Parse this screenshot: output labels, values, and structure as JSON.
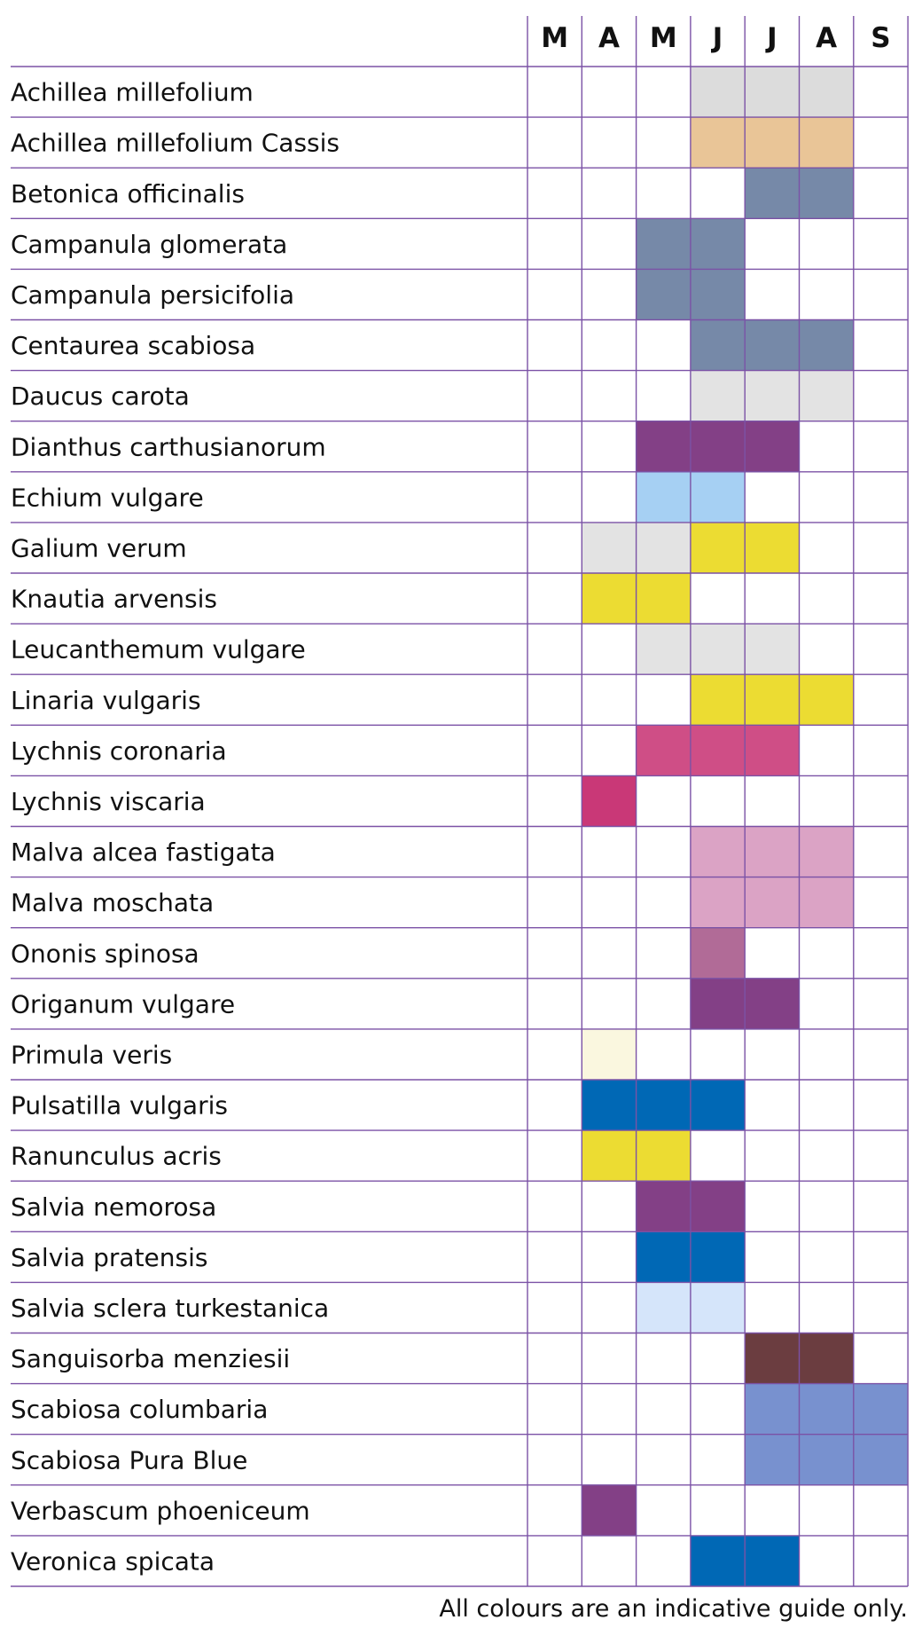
{
  "chart_data": {
    "type": "table",
    "months": [
      "M",
      "A",
      "M",
      "J",
      "J",
      "A",
      "S"
    ],
    "rows": [
      {
        "name": "Achillea millefolium",
        "cells": [
          null,
          null,
          null,
          "#dcdcdc",
          "#dcdcdc",
          "#dcdcdc",
          null
        ]
      },
      {
        "name": "Achillea millefolium Cassis",
        "cells": [
          null,
          null,
          null,
          "#e9c597",
          "#e9c597",
          "#e9c597",
          null
        ]
      },
      {
        "name": "Betonica officinalis",
        "cells": [
          null,
          null,
          null,
          null,
          "#7689a8",
          "#7689a8",
          null
        ]
      },
      {
        "name": "Campanula glomerata",
        "cells": [
          null,
          null,
          "#7689a8",
          "#7689a8",
          null,
          null,
          null
        ]
      },
      {
        "name": "Campanula persicifolia",
        "cells": [
          null,
          null,
          "#7689a8",
          "#7689a8",
          null,
          null,
          null
        ]
      },
      {
        "name": "Centaurea scabiosa",
        "cells": [
          null,
          null,
          null,
          "#7689a8",
          "#7689a8",
          "#7689a8",
          null
        ]
      },
      {
        "name": "Daucus carota",
        "cells": [
          null,
          null,
          null,
          "#e3e3e3",
          "#e3e3e3",
          "#e3e3e3",
          null
        ]
      },
      {
        "name": "Dianthus carthusianorum",
        "cells": [
          null,
          null,
          "#834086",
          "#834086",
          "#834086",
          null,
          null
        ]
      },
      {
        "name": "Echium vulgare",
        "cells": [
          null,
          null,
          "#a6d0f3",
          "#a6d0f3",
          null,
          null,
          null
        ]
      },
      {
        "name": "Galium verum",
        "cells": [
          null,
          "#e3e3e3",
          "#e3e3e3",
          "#ecdc32",
          "#ecdc32",
          null,
          null
        ]
      },
      {
        "name": "Knautia arvensis",
        "cells": [
          null,
          "#ecdc32",
          "#ecdc32",
          null,
          null,
          null,
          null
        ]
      },
      {
        "name": "Leucanthemum vulgare",
        "cells": [
          null,
          null,
          "#e3e3e3",
          "#e3e3e3",
          "#e3e3e3",
          null,
          null
        ]
      },
      {
        "name": "Linaria vulgaris",
        "cells": [
          null,
          null,
          null,
          "#ecdc32",
          "#ecdc32",
          "#ecdc32",
          null
        ]
      },
      {
        "name": "Lychnis coronaria",
        "cells": [
          null,
          null,
          "#cf4e86",
          "#cf4e86",
          "#cf4e86",
          null,
          null
        ]
      },
      {
        "name": "Lychnis viscaria",
        "cells": [
          null,
          "#c93877",
          null,
          null,
          null,
          null,
          null
        ]
      },
      {
        "name": "Malva alcea fastigata",
        "cells": [
          null,
          null,
          null,
          "#dba3c5",
          "#dba3c5",
          "#dba3c5",
          null
        ]
      },
      {
        "name": "Malva moschata",
        "cells": [
          null,
          null,
          null,
          "#dba3c5",
          "#dba3c5",
          "#dba3c5",
          null
        ]
      },
      {
        "name": "Ononis spinosa",
        "cells": [
          null,
          null,
          null,
          "#b16b97",
          null,
          null,
          null
        ]
      },
      {
        "name": "Origanum vulgare",
        "cells": [
          null,
          null,
          null,
          "#834086",
          "#834086",
          null,
          null
        ]
      },
      {
        "name": "Primula veris",
        "cells": [
          null,
          "#faf7df",
          null,
          null,
          null,
          null,
          null
        ]
      },
      {
        "name": "Pulsatilla vulgaris",
        "cells": [
          null,
          "#0068b5",
          "#0068b5",
          "#0068b5",
          null,
          null,
          null
        ]
      },
      {
        "name": "Ranunculus acris",
        "cells": [
          null,
          "#ecdc32",
          "#ecdc32",
          null,
          null,
          null,
          null
        ]
      },
      {
        "name": "Salvia nemorosa",
        "cells": [
          null,
          null,
          "#834086",
          "#834086",
          null,
          null,
          null
        ]
      },
      {
        "name": "Salvia pratensis",
        "cells": [
          null,
          null,
          "#0068b5",
          "#0068b5",
          null,
          null,
          null
        ]
      },
      {
        "name": "Salvia sclera turkestanica",
        "cells": [
          null,
          null,
          "#d5e5fa",
          "#d5e5fa",
          null,
          null,
          null
        ]
      },
      {
        "name": "Sanguisorba menziesii",
        "cells": [
          null,
          null,
          null,
          null,
          "#6b3d40",
          "#6b3d40",
          null
        ]
      },
      {
        "name": "Scabiosa columbaria",
        "cells": [
          null,
          null,
          null,
          null,
          "#7891cf",
          "#7891cf",
          "#7891cf"
        ]
      },
      {
        "name": "Scabiosa Pura Blue",
        "cells": [
          null,
          null,
          null,
          null,
          "#7891cf",
          "#7891cf",
          "#7891cf"
        ]
      },
      {
        "name": "Verbascum phoeniceum",
        "cells": [
          null,
          "#834086",
          null,
          null,
          null,
          null,
          null
        ]
      },
      {
        "name": "Veronica spicata",
        "cells": [
          null,
          null,
          null,
          "#0068b5",
          "#0068b5",
          null,
          null
        ]
      }
    ],
    "grid_color": "#7b52a6"
  },
  "footnote": "All colours are an indicative guide only."
}
